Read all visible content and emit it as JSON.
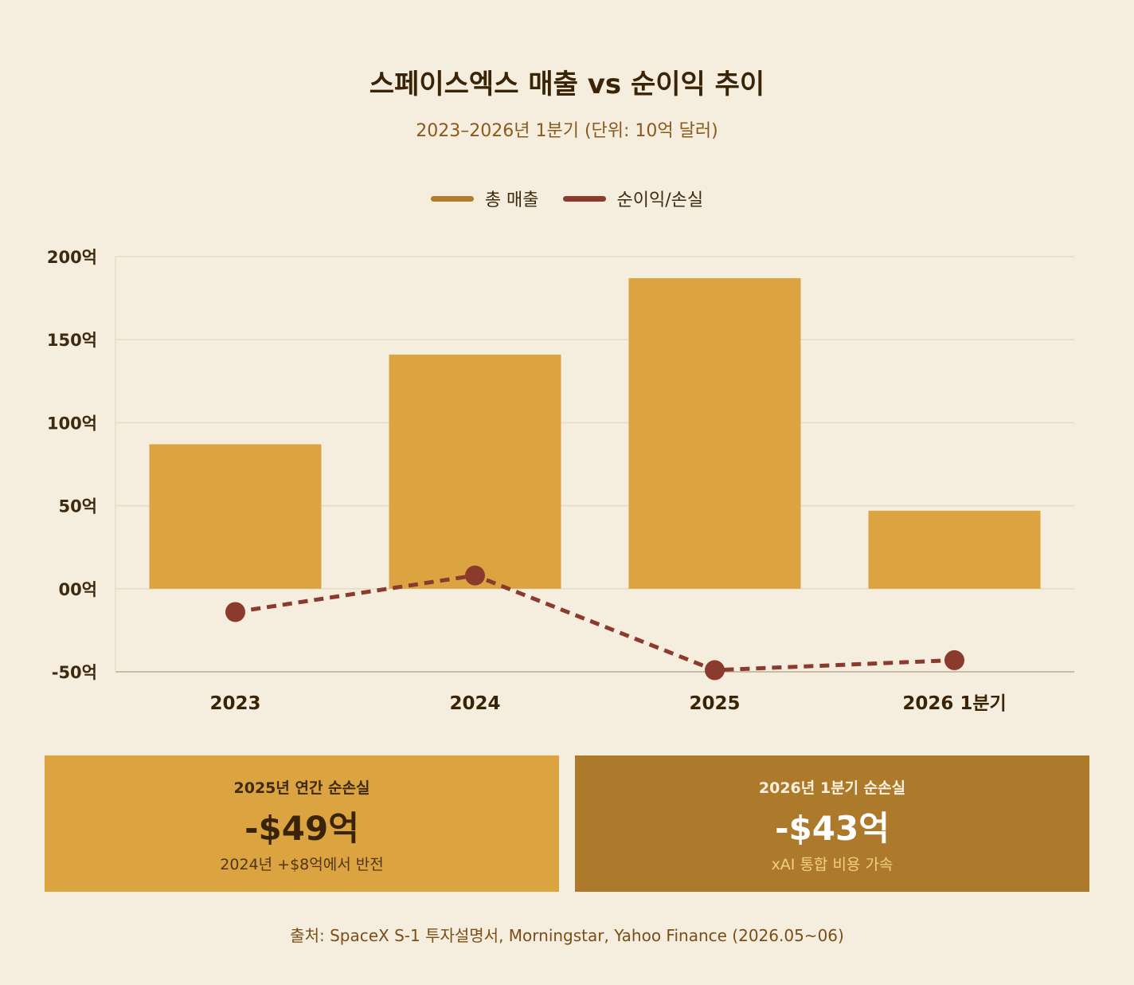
{
  "header": {
    "title": "스페이스엑스 매출 vs 순이익 추이",
    "subtitle": "2023–2026년 1분기 (단위: 10억 달러)"
  },
  "legend": [
    {
      "label": "총 매출",
      "color": "#b07d2c"
    },
    {
      "label": "순이익/손실",
      "color": "#8b3a2e"
    }
  ],
  "colors": {
    "background": "#f5eddd",
    "bar": "#dca440",
    "line": "#8b3a2e",
    "grid": "#e6dbc6",
    "axis": "#c9bba6",
    "card_left_bg": "#dca440",
    "card_right_bg": "#ad7a2c"
  },
  "chart_data": {
    "type": "bar",
    "categories": [
      "2023",
      "2024",
      "2025",
      "2026 1분기"
    ],
    "series": [
      {
        "name": "총 매출",
        "type": "bar",
        "values": [
          87,
          141,
          187,
          47
        ]
      },
      {
        "name": "순이익/손실",
        "type": "line",
        "style": "dashed",
        "values": [
          -14,
          8,
          -49,
          -43
        ]
      }
    ],
    "ylim": [
      -50,
      200
    ],
    "yticks": [
      -50,
      0,
      50,
      100,
      150,
      200
    ],
    "ytick_labels": [
      "-50억",
      "00억",
      "50억",
      "100억",
      "150억",
      "200억"
    ],
    "xlabel": "",
    "ylabel": "",
    "grid": true
  },
  "cards": [
    {
      "label": "2025년 연간 순손실",
      "value": "-$49억",
      "note": "2024년 +$8억에서 반전"
    },
    {
      "label": "2026년 1분기 순손실",
      "value": "-$43억",
      "note": "xAI 통합 비용 가속"
    }
  ],
  "footer": {
    "source": "출처: SpaceX S-1 투자설명서, Morningstar, Yahoo Finance (2026.05~06)"
  }
}
